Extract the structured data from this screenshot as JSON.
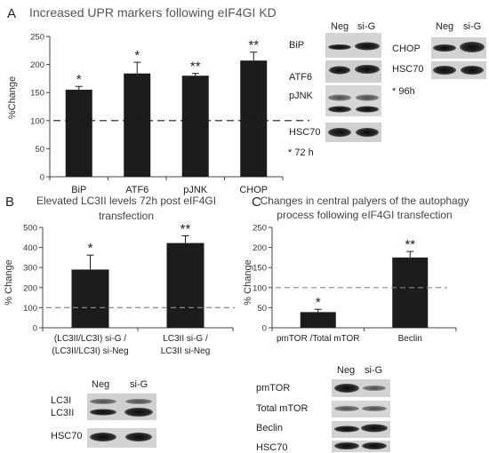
{
  "chart_data": [
    {
      "panel": "A",
      "type": "bar",
      "title": "Increased UPR markers following eIF4GI KD",
      "ylabel": "%Change",
      "ylim": [
        0,
        250
      ],
      "yticks": [
        0,
        50,
        100,
        150,
        200,
        250
      ],
      "reference_line": 100,
      "categories": [
        "BiP",
        "ATF6",
        "pJNK",
        "CHOP"
      ],
      "values": [
        155,
        184,
        180,
        207
      ],
      "errors": [
        6,
        20,
        4,
        15
      ],
      "significance": [
        "*",
        "*",
        "**",
        "**"
      ]
    },
    {
      "panel": "B",
      "type": "bar",
      "title_lines": [
        "Elevated LC3II levels 72h post eIF4GI",
        "transfection"
      ],
      "ylabel": "% Change",
      "ylim": [
        0,
        500
      ],
      "yticks": [
        0,
        100,
        200,
        300,
        400,
        500
      ],
      "reference_line": 100,
      "categories": [
        [
          "(LC3II/LC3I) si-G /",
          "(LC3II/LC3I) si-Neg"
        ],
        [
          "LC3II si-G /",
          "LC3II  si-Neg"
        ]
      ],
      "values": [
        290,
        422
      ],
      "errors": [
        72,
        36
      ],
      "significance": [
        "*",
        "**"
      ]
    },
    {
      "panel": "C",
      "type": "bar",
      "title_lines": [
        "Changes in central palyers of the autophagy",
        "process following eIF4GI transfection"
      ],
      "ylabel": "% Change",
      "ylim": [
        0,
        250
      ],
      "yticks": [
        0,
        50,
        100,
        150,
        200,
        250
      ],
      "reference_line": 100,
      "categories": [
        "pmTOR /Total mTOR",
        "Beclin"
      ],
      "values": [
        39,
        175
      ],
      "errors": [
        7,
        15
      ],
      "significance": [
        "*",
        "**"
      ]
    }
  ],
  "blots": {
    "a72": {
      "columns": [
        "Neg",
        "si-G"
      ],
      "rows": [
        "BiP",
        "ATF6",
        "pJNK",
        "HSC70"
      ],
      "note": "* 72 h"
    },
    "a96": {
      "columns": [
        "Neg",
        "si-G"
      ],
      "rows": [
        "CHOP",
        "HSC70"
      ],
      "note": "* 96h"
    },
    "b": {
      "columns": [
        "Neg",
        "si-G"
      ],
      "rows": [
        "LC3I",
        "LC3II",
        "HSC70"
      ]
    },
    "c": {
      "columns": [
        "Neg",
        "si-G"
      ],
      "rows": [
        "pmTOR",
        "Total mTOR",
        "Beclin",
        "HSC70"
      ]
    }
  },
  "panel_letters": [
    "A",
    "B",
    "C"
  ]
}
